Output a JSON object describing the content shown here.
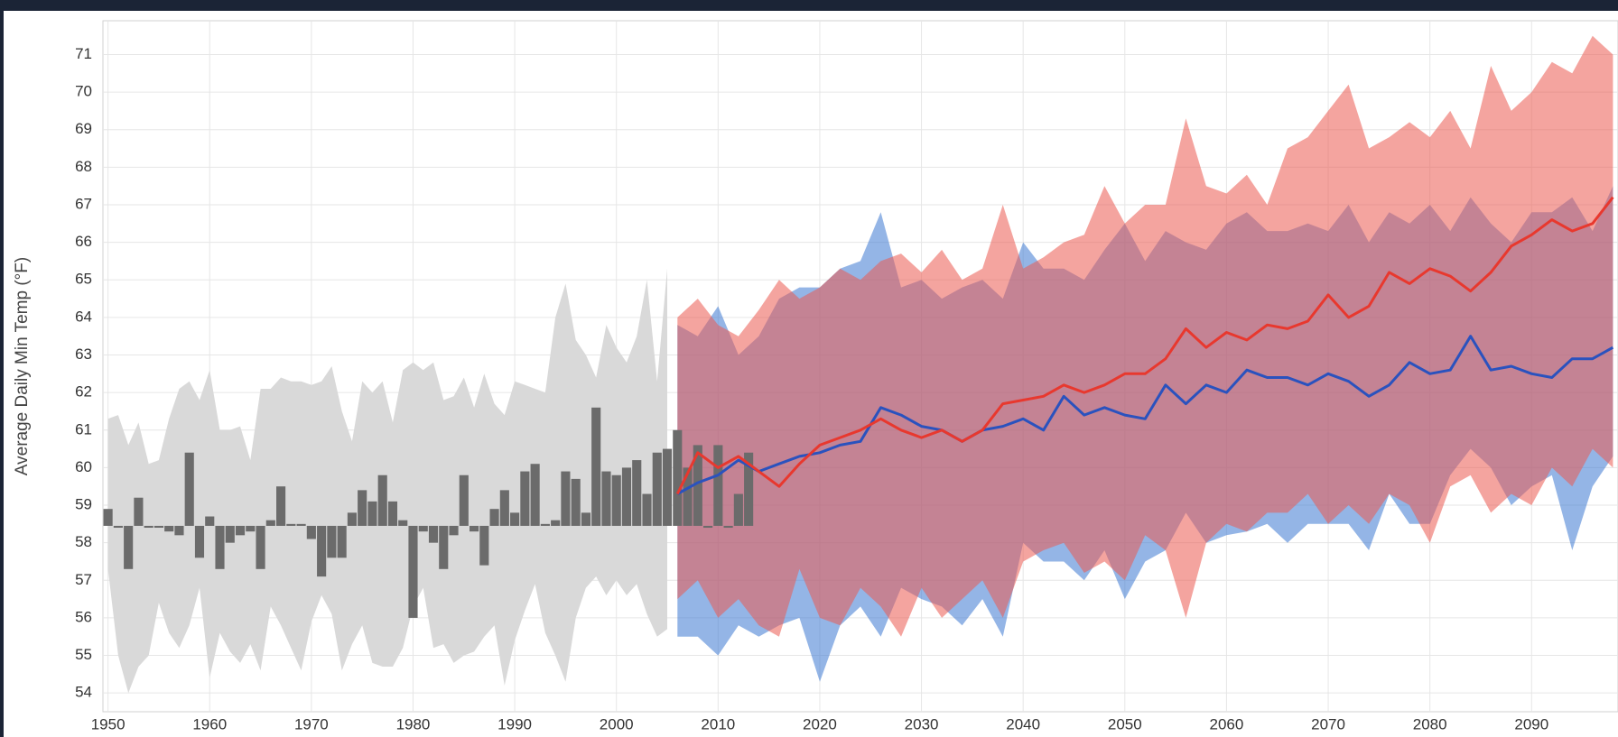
{
  "chart_data": {
    "type": "line",
    "ylabel": "Average Daily Min Temp (°F)",
    "xlim": [
      1949.5,
      2098.5
    ],
    "ylim": [
      53.5,
      71.9
    ],
    "xticks": [
      1950,
      1960,
      1970,
      1980,
      1990,
      2000,
      2010,
      2020,
      2030,
      2040,
      2050,
      2060,
      2070,
      2080,
      2090
    ],
    "yticks": [
      54,
      55,
      56,
      57,
      58,
      59,
      60,
      61,
      62,
      63,
      64,
      65,
      66,
      67,
      68,
      69,
      70,
      71
    ],
    "grid": true,
    "observed_band": {
      "color": "#d9d9d9",
      "x": [
        1950,
        1951,
        1952,
        1953,
        1954,
        1955,
        1956,
        1957,
        1958,
        1959,
        1960,
        1961,
        1962,
        1963,
        1964,
        1965,
        1966,
        1967,
        1968,
        1969,
        1970,
        1971,
        1972,
        1973,
        1974,
        1975,
        1976,
        1977,
        1978,
        1979,
        1980,
        1981,
        1982,
        1983,
        1984,
        1985,
        1986,
        1987,
        1988,
        1989,
        1990,
        1991,
        1992,
        1993,
        1994,
        1995,
        1996,
        1997,
        1998,
        1999,
        2000,
        2001,
        2002,
        2003,
        2004,
        2005
      ],
      "high": [
        61.3,
        61.4,
        60.6,
        61.2,
        60.1,
        60.2,
        61.3,
        62.1,
        62.3,
        61.8,
        62.6,
        61.0,
        61.0,
        61.1,
        60.2,
        62.1,
        62.1,
        62.4,
        62.3,
        62.3,
        62.2,
        62.3,
        62.7,
        61.5,
        60.7,
        62.3,
        62.0,
        62.3,
        61.2,
        62.6,
        62.8,
        62.6,
        62.8,
        61.8,
        61.9,
        62.4,
        61.6,
        62.5,
        61.7,
        61.4,
        62.3,
        62.2,
        62.1,
        62.0,
        64.0,
        64.9,
        63.4,
        63.0,
        62.4,
        63.8,
        63.2,
        62.8,
        63.5,
        65.0,
        62.3,
        65.3
      ],
      "low": [
        57.3,
        55.0,
        54.0,
        54.7,
        55.0,
        56.4,
        55.6,
        55.2,
        55.8,
        56.8,
        54.4,
        55.6,
        55.1,
        54.8,
        55.3,
        54.6,
        56.3,
        55.8,
        55.2,
        54.6,
        55.9,
        56.6,
        56.1,
        54.6,
        55.3,
        55.8,
        54.8,
        54.7,
        54.7,
        55.2,
        56.3,
        56.8,
        55.2,
        55.3,
        54.8,
        55.0,
        55.1,
        55.5,
        55.8,
        54.2,
        55.4,
        56.2,
        56.9,
        55.6,
        55.0,
        54.3,
        56.0,
        56.8,
        57.1,
        56.6,
        57.0,
        56.6,
        56.9,
        56.1,
        55.5,
        55.7
      ]
    },
    "bars": {
      "color": "#6b6b6b",
      "base": 58.45,
      "x": [
        1950,
        1951,
        1952,
        1953,
        1954,
        1955,
        1956,
        1957,
        1958,
        1959,
        1960,
        1961,
        1962,
        1963,
        1964,
        1965,
        1966,
        1967,
        1968,
        1969,
        1970,
        1971,
        1972,
        1973,
        1974,
        1975,
        1976,
        1977,
        1978,
        1979,
        1980,
        1981,
        1982,
        1983,
        1984,
        1985,
        1986,
        1987,
        1988,
        1989,
        1990,
        1991,
        1992,
        1993,
        1994,
        1995,
        1996,
        1997,
        1998,
        1999,
        2000,
        2001,
        2002,
        2003,
        2004,
        2005,
        2006,
        2007,
        2008,
        2009,
        2010,
        2011,
        2012,
        2013
      ],
      "values": [
        58.9,
        58.4,
        57.3,
        59.2,
        58.4,
        58.4,
        58.3,
        58.2,
        60.4,
        57.6,
        58.7,
        57.3,
        58.0,
        58.2,
        58.3,
        57.3,
        58.6,
        59.5,
        58.5,
        58.5,
        58.1,
        57.1,
        57.6,
        57.6,
        58.8,
        59.4,
        59.1,
        59.8,
        59.1,
        58.6,
        56.0,
        58.3,
        58.0,
        57.3,
        58.2,
        59.8,
        58.3,
        57.4,
        58.9,
        59.4,
        58.8,
        59.9,
        60.1,
        58.5,
        58.6,
        59.9,
        59.7,
        58.8,
        61.6,
        59.9,
        59.8,
        60.0,
        60.2,
        59.3,
        60.4,
        60.5,
        61.0,
        60.0,
        60.6,
        58.4,
        60.6,
        58.4,
        59.3,
        60.4
      ]
    },
    "projections": {
      "x": [
        2006,
        2008,
        2010,
        2012,
        2014,
        2016,
        2018,
        2020,
        2022,
        2024,
        2026,
        2028,
        2030,
        2032,
        2034,
        2036,
        2038,
        2040,
        2042,
        2044,
        2046,
        2048,
        2050,
        2052,
        2054,
        2056,
        2058,
        2060,
        2062,
        2064,
        2066,
        2068,
        2070,
        2072,
        2074,
        2076,
        2078,
        2080,
        2082,
        2084,
        2086,
        2088,
        2090,
        2092,
        2094,
        2096,
        2098
      ],
      "series": [
        {
          "color": "#2a52be",
          "band_color": "rgba(60,120,210,0.55)",
          "values": [
            59.3,
            59.6,
            59.8,
            60.2,
            59.9,
            60.1,
            60.3,
            60.4,
            60.6,
            60.7,
            61.6,
            61.4,
            61.1,
            61.0,
            60.7,
            61.0,
            61.1,
            61.3,
            61.0,
            61.9,
            61.4,
            61.6,
            61.4,
            61.3,
            62.2,
            61.7,
            62.2,
            62.0,
            62.6,
            62.4,
            62.4,
            62.2,
            62.5,
            62.3,
            61.9,
            62.2,
            62.8,
            62.5,
            62.6,
            63.5,
            62.6,
            62.7,
            62.5,
            62.4,
            62.9,
            62.9,
            63.2
          ],
          "band_high": [
            63.8,
            63.5,
            64.3,
            63.0,
            63.5,
            64.5,
            64.8,
            64.8,
            65.3,
            65.5,
            66.8,
            64.8,
            65.0,
            64.5,
            64.8,
            65.0,
            64.5,
            66.0,
            65.3,
            65.3,
            65.0,
            65.8,
            66.5,
            65.5,
            66.3,
            66.0,
            65.8,
            66.5,
            66.8,
            66.3,
            66.3,
            66.5,
            66.3,
            67.0,
            66.0,
            66.8,
            66.5,
            67.0,
            66.3,
            67.2,
            66.5,
            66.0,
            66.8,
            66.8,
            67.2,
            66.3,
            67.5
          ],
          "band_low": [
            55.5,
            55.5,
            55.0,
            55.8,
            55.5,
            55.8,
            56.0,
            54.3,
            55.8,
            56.3,
            55.5,
            56.8,
            56.5,
            56.3,
            55.8,
            56.5,
            55.5,
            58.0,
            57.5,
            57.5,
            57.0,
            57.8,
            56.5,
            57.5,
            57.8,
            58.8,
            58.0,
            58.2,
            58.3,
            58.5,
            58.0,
            58.5,
            58.5,
            58.5,
            57.8,
            59.3,
            58.5,
            58.5,
            59.8,
            60.5,
            60.0,
            59.0,
            59.5,
            59.8,
            57.8,
            59.5,
            60.3
          ]
        },
        {
          "color": "#e8382e",
          "band_color": "rgba(235,90,80,0.55)",
          "values": [
            59.3,
            60.4,
            60.0,
            60.3,
            59.9,
            59.5,
            60.1,
            60.6,
            60.8,
            61.0,
            61.3,
            61.0,
            60.8,
            61.0,
            60.7,
            61.0,
            61.7,
            61.8,
            61.9,
            62.2,
            62.0,
            62.2,
            62.5,
            62.5,
            62.9,
            63.7,
            63.2,
            63.6,
            63.4,
            63.8,
            63.7,
            63.9,
            64.6,
            64.0,
            64.3,
            65.2,
            64.9,
            65.3,
            65.1,
            64.7,
            65.2,
            65.9,
            66.2,
            66.6,
            66.3,
            66.5,
            67.2
          ],
          "band_high": [
            64.0,
            64.5,
            63.8,
            63.5,
            64.2,
            65.0,
            64.5,
            64.8,
            65.3,
            65.0,
            65.5,
            65.7,
            65.2,
            65.8,
            65.0,
            65.3,
            67.0,
            65.3,
            65.6,
            66.0,
            66.2,
            67.5,
            66.5,
            67.0,
            67.0,
            69.3,
            67.5,
            67.3,
            67.8,
            67.0,
            68.5,
            68.8,
            69.5,
            70.2,
            68.5,
            68.8,
            69.2,
            68.8,
            69.5,
            68.5,
            70.7,
            69.5,
            70.0,
            70.8,
            70.5,
            71.5,
            71.0
          ],
          "band_low": [
            56.5,
            57.0,
            56.0,
            56.5,
            55.8,
            55.5,
            57.3,
            56.0,
            55.8,
            56.8,
            56.3,
            55.5,
            56.8,
            56.0,
            56.5,
            57.0,
            56.0,
            57.5,
            57.8,
            58.0,
            57.2,
            57.5,
            57.0,
            58.2,
            57.8,
            56.0,
            58.0,
            58.5,
            58.3,
            58.8,
            58.8,
            59.3,
            58.5,
            59.0,
            58.5,
            59.3,
            59.0,
            58.0,
            59.5,
            59.8,
            58.8,
            59.3,
            59.0,
            60.0,
            59.5,
            60.5,
            60.0
          ]
        }
      ]
    }
  }
}
